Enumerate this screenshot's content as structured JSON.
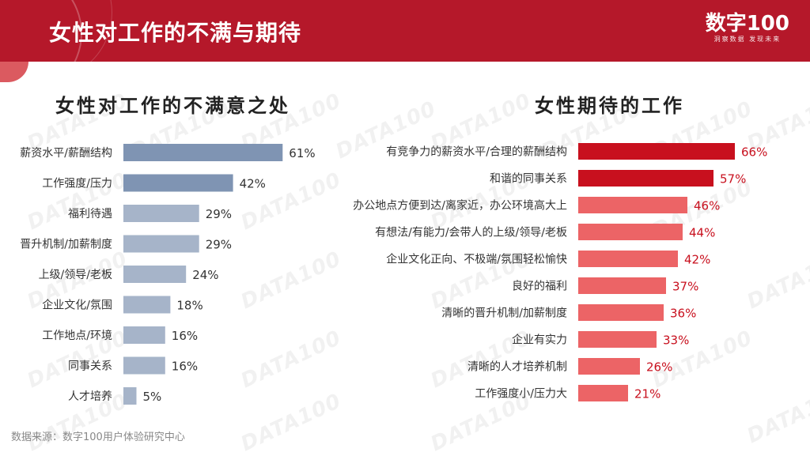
{
  "header": {
    "title": "女性对工作的不满与期待",
    "logo": "数字100",
    "logo_sub": "洞察数据  发现未来"
  },
  "watermark": "DATA100",
  "source": "数据来源：数字100用户体验研究中心",
  "colors": {
    "header_bg": "#b5182a",
    "left_top": "#7f94b3",
    "left_rest": "#a6b4c9",
    "right_top": "#c8101e",
    "right_rest": "#ec6466",
    "right_label": "#c8101e",
    "left_label": "#333333"
  },
  "chart_data": [
    {
      "type": "bar",
      "orientation": "horizontal",
      "title": "女性对工作的不满意之处",
      "categories": [
        "薪资水平/薪酬结构",
        "工作强度/压力",
        "福利待遇",
        "晋升机制/加薪制度",
        "上级/领导/老板",
        "企业文化/氛围",
        "工作地点/环境",
        "同事关系",
        "人才培养"
      ],
      "values": [
        61,
        42,
        29,
        29,
        24,
        18,
        16,
        16,
        5
      ],
      "unit": "%",
      "highlight_top": 2
    },
    {
      "type": "bar",
      "orientation": "horizontal",
      "title": "女性期待的工作",
      "categories": [
        "有竞争力的薪资水平/合理的薪酬结构",
        "和谐的同事关系",
        "办公地点方便到达/离家近，办公环境高大上",
        "有想法/有能力/会带人的上级/领导/老板",
        "企业文化正向、不极端/氛围轻松愉快",
        "良好的福利",
        "清晰的晋升机制/加薪制度",
        "企业有实力",
        "清晰的人才培养机制",
        "工作强度小/压力大"
      ],
      "values": [
        66,
        57,
        46,
        44,
        42,
        37,
        36,
        33,
        26,
        21
      ],
      "unit": "%",
      "highlight_top": 2
    }
  ]
}
